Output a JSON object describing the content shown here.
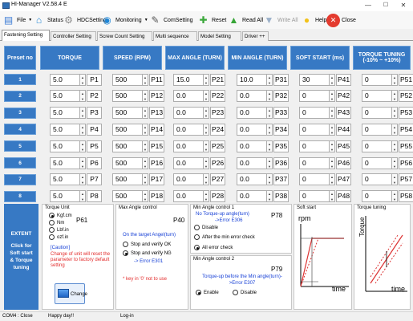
{
  "window": {
    "title": "HI-Manager  V2.58.4 E",
    "minimize": "—",
    "maximize": "☐",
    "close": "✕"
  },
  "toolbar": [
    {
      "label": "File",
      "icon": "file-icon",
      "dropdown": true
    },
    {
      "label": "Status",
      "icon": "home-icon",
      "dropdown": false
    },
    {
      "label": "HDCSetting",
      "icon": "gear-icon",
      "dropdown": false
    },
    {
      "label": "Monitoring",
      "icon": "monitor-icon",
      "dropdown": true
    },
    {
      "label": "ComSetting",
      "icon": "wrench-icon",
      "dropdown": false
    },
    {
      "label": "Reset",
      "icon": "reset-icon",
      "dropdown": false
    },
    {
      "label": "Read All",
      "icon": "arrow-up-icon",
      "dropdown": false
    },
    {
      "label": "Write All",
      "icon": "arrow-down-icon",
      "dropdown": false
    },
    {
      "label": "Help",
      "icon": "speech-bubble-icon",
      "dropdown": false
    },
    {
      "label": "Close",
      "icon": "close-icon",
      "dropdown": false
    }
  ],
  "tabs": [
    "Fastening Setting",
    "Controller Setting",
    "Screw Count Setting",
    "Multi sequence",
    "Model Setting",
    "Driver ++"
  ],
  "active_tab": 0,
  "table": {
    "headers": [
      "Preset no",
      "TORQUE",
      "SPEED (RPM)",
      "MAX ANGLE (TURN)",
      "MIN ANGLE (TURN)",
      "SOFT START (ms)",
      "TORQUE TUNING (-10% ~ +10%)"
    ],
    "rows": [
      {
        "no": "1",
        "torque": "5.0",
        "tp": "P1",
        "speed": "500",
        "sp": "P11",
        "max": "15.0",
        "mp": "P21",
        "min": "10.0",
        "np": "P31",
        "soft": "30",
        "sop": "P41",
        "tune": "0",
        "tup": "P51"
      },
      {
        "no": "2",
        "torque": "5.0",
        "tp": "P2",
        "speed": "500",
        "sp": "P12",
        "max": "0.0",
        "mp": "P22",
        "min": "0.0",
        "np": "P32",
        "soft": "0",
        "sop": "P42",
        "tune": "0",
        "tup": "P52"
      },
      {
        "no": "3",
        "torque": "5.0",
        "tp": "P3",
        "speed": "500",
        "sp": "P13",
        "max": "0.0",
        "mp": "P23",
        "min": "0.0",
        "np": "P33",
        "soft": "0",
        "sop": "P43",
        "tune": "0",
        "tup": "P53"
      },
      {
        "no": "4",
        "torque": "5.0",
        "tp": "P4",
        "speed": "500",
        "sp": "P14",
        "max": "0.0",
        "mp": "P24",
        "min": "0.0",
        "np": "P34",
        "soft": "0",
        "sop": "P44",
        "tune": "0",
        "tup": "P54"
      },
      {
        "no": "5",
        "torque": "5.0",
        "tp": "P5",
        "speed": "500",
        "sp": "P15",
        "max": "0.0",
        "mp": "P25",
        "min": "0.0",
        "np": "P35",
        "soft": "0",
        "sop": "P45",
        "tune": "0",
        "tup": "P55"
      },
      {
        "no": "6",
        "torque": "5.0",
        "tp": "P6",
        "speed": "500",
        "sp": "P16",
        "max": "0.0",
        "mp": "P26",
        "min": "0.0",
        "np": "P36",
        "soft": "0",
        "sop": "P46",
        "tune": "0",
        "tup": "P56"
      },
      {
        "no": "7",
        "torque": "5.0",
        "tp": "P7",
        "speed": "500",
        "sp": "P17",
        "max": "0.0",
        "mp": "P27",
        "min": "0.0",
        "np": "P37",
        "soft": "0",
        "sop": "P47",
        "tune": "0",
        "tup": "P57"
      },
      {
        "no": "8",
        "torque": "5.0",
        "tp": "P8",
        "speed": "500",
        "sp": "P18",
        "max": "0.0",
        "mp": "P28",
        "min": "0.0",
        "np": "P38",
        "soft": "0",
        "sop": "P48",
        "tune": "0",
        "tup": "P58"
      }
    ]
  },
  "extent": {
    "title": "EXTENT",
    "text": "Click for Soft start & Torque tuning"
  },
  "torque_unit": {
    "title": "Torque Unit",
    "param": "P61",
    "options": [
      "Kgf.cm",
      "Nm",
      "Lbf.in",
      "ozf.in"
    ],
    "selected": 0,
    "caution_title": "[Caution]",
    "caution_text": "Change of unit will reset the parameter to factory default setting",
    "change_label": "Change"
  },
  "max_angle": {
    "title": "Max Angle control",
    "param": "P40",
    "subtitle": "On the target Angel(turn)",
    "options": [
      "Stop and verify OK",
      "Stop and verify NG"
    ],
    "selected": 1,
    "error": "-> Error E301",
    "note": "* key in '0' not to use"
  },
  "min_angle1": {
    "title": "Min Angle control 1",
    "param": "P78",
    "subtitle": "No Torque-up angle(turn)",
    "error": "->Error E306",
    "options": [
      "Disable",
      "After the min error check",
      "All error check"
    ],
    "selected": 2
  },
  "min_angle2": {
    "title": "Min Angle control 2",
    "param": "P79",
    "subtitle": "Torque-up before the Min angle(turn)->Error E307",
    "options": [
      "Enable",
      "Disable"
    ],
    "selected": 0
  },
  "soft_start": {
    "title": "Soft start",
    "ylabel": "rpm",
    "xlabel": "time"
  },
  "torque_tuning": {
    "title": "Torque tuning",
    "ylabel": "Torque",
    "xlabel": "time"
  },
  "status": {
    "port": "COM4 : Close",
    "msg": "Happy day!!",
    "login": "Log-in"
  },
  "colors": {
    "header_blue": "#3779c4",
    "text_blue": "#1740d6",
    "caution_red": "#e32d2d"
  }
}
